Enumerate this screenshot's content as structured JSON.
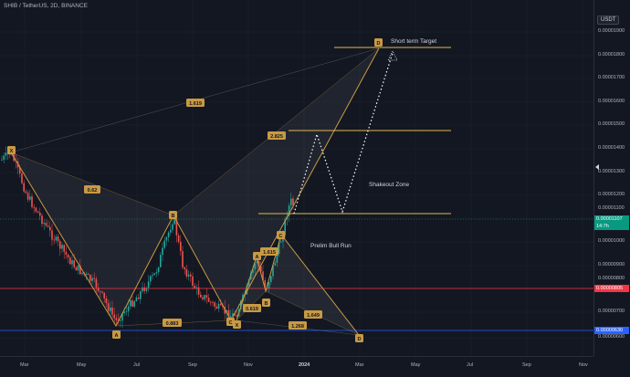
{
  "header": {
    "symbol": "SHIB / TetherUS, 2D, BINANCE"
  },
  "price_axis": {
    "currency": "USDT",
    "ticks": [
      "0.00001900",
      "0.00001800",
      "0.00001700",
      "0.00001600",
      "0.00001500",
      "0.00001400",
      "0.00001300",
      "0.00001200",
      "0.00001100",
      "0.00001000",
      "0.00000900",
      "0.00000800",
      "0.00000700",
      "0.00000600"
    ],
    "current_price": "0.00001107",
    "countdown": "14:7h",
    "red_level": "0.00000805",
    "blue_level": "0.00000630"
  },
  "time_axis": {
    "labels": [
      "Mar",
      "May",
      "Jul",
      "Sep",
      "Nov",
      "2024",
      "Mar",
      "May",
      "Jul",
      "Sep",
      "Nov"
    ]
  },
  "annotations": {
    "short_term_target": "Short term Target",
    "shakeout_zone": "Shakeout Zone",
    "prelim_bull_run": "Prelim Bull Run"
  },
  "fib_labels": [
    "1.619",
    "0.62",
    "2.825",
    "0.883",
    "1.615",
    "0.619",
    "1.649",
    "1.268"
  ],
  "pattern_points": [
    "X",
    "A",
    "B",
    "C",
    "D",
    "X",
    "A",
    "B",
    "C",
    "D"
  ],
  "colors": {
    "background": "#131722",
    "up_candle": "#26a69a",
    "down_candle": "#ef5350",
    "pattern_line": "#c99a43",
    "target_line": "#e6b84c",
    "red_line": "#f23645",
    "blue_line": "#2962ff"
  }
}
